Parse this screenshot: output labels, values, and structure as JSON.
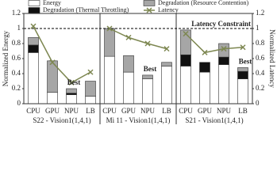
{
  "chart_data": {
    "type": "bar",
    "ylabel": "Normalized Energy",
    "y2label": "Normalized Latency",
    "ylim": [
      0,
      1.2
    ],
    "yticks": [
      0,
      0.2,
      0.4,
      0.6,
      0.8,
      1,
      1.2
    ],
    "y2lim": [
      0,
      1.2
    ],
    "y2ticks": [
      0,
      0.2,
      0.4,
      0.6,
      0.8,
      1,
      1.2
    ],
    "groups": [
      {
        "label": "S22 - Vision1(1,4,1)",
        "categories": [
          "CPU",
          "GPU",
          "NPU",
          "LB"
        ]
      },
      {
        "label": "Mi 11 - Vision1(1,4,1)",
        "categories": [
          "CPU",
          "GPU",
          "NPU",
          "LB"
        ]
      },
      {
        "label": "S21 - Vision1(1,4,1)",
        "categories": [
          "CPU",
          "GPU",
          "NPU",
          "LB"
        ]
      }
    ],
    "series": [
      {
        "name": "Energy",
        "color": "#ffffff",
        "values": [
          0.68,
          0.15,
          0.12,
          0.1,
          0.63,
          0.42,
          0.33,
          0.5,
          0.5,
          0.42,
          0.52,
          0.33
        ]
      },
      {
        "name": "Degradation (Thermal Throttling)",
        "color": "#111111",
        "values": [
          0.1,
          0,
          0.02,
          0,
          0,
          0,
          0,
          0,
          0.15,
          0.13,
          0.1,
          0.1
        ]
      },
      {
        "name": "Degradation (Resource Contention)",
        "color": "#a6a6a6",
        "values": [
          0.1,
          0.42,
          0.06,
          0.2,
          0.37,
          0.22,
          0.05,
          0.05,
          0.33,
          0,
          0.18,
          0.05
        ]
      },
      {
        "name": "Latency",
        "color": "#7d8751",
        "axis": "y2",
        "values": [
          1.03,
          0.55,
          0.28,
          0.42,
          1.0,
          0.88,
          0.8,
          0.73,
          0.93,
          0.68,
          0.73,
          0.75
        ]
      }
    ],
    "constraint": {
      "label": "Latency Constraint",
      "value": 1
    },
    "annotations": [
      {
        "text": "Best",
        "index": 2
      },
      {
        "text": "Best",
        "index": 6
      },
      {
        "text": "Best",
        "index": 11
      }
    ]
  }
}
